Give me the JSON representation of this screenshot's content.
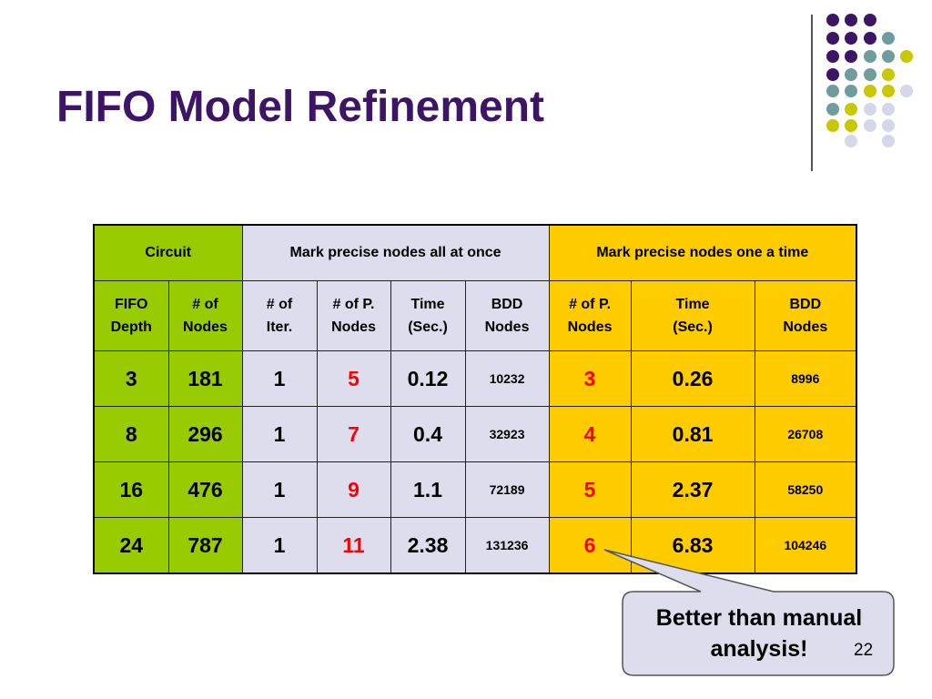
{
  "slide": {
    "title": "FIFO Model Refinement",
    "page_number": "22",
    "accent_colors": {
      "title": "#3d1565",
      "circuit_group": "#99cc00",
      "all_at_once_group": "#ddddee",
      "one_a_time_group": "#ffcc00",
      "highlight_text": "#ff0000"
    },
    "decor_dot_colors": [
      "#3d1565",
      "#6f9c9c",
      "#c8c800",
      "#d7d7ea"
    ]
  },
  "table": {
    "group_headers": {
      "circuit": "Circuit",
      "all_at_once": "Mark precise nodes all at once",
      "one_a_time": "Mark precise nodes one a time"
    },
    "columns": [
      {
        "line1": "FIFO",
        "line2": "Depth"
      },
      {
        "line1": "# of",
        "line2": "Nodes"
      },
      {
        "line1": "# of",
        "line2": "Iter."
      },
      {
        "line1": "# of P.",
        "line2": "Nodes"
      },
      {
        "line1": "Time",
        "line2": "(Sec.)"
      },
      {
        "line1": "BDD",
        "line2": "Nodes"
      },
      {
        "line1": "# of P.",
        "line2": "Nodes"
      },
      {
        "line1": "Time",
        "line2": "(Sec.)"
      },
      {
        "line1": "BDD",
        "line2": "Nodes"
      }
    ],
    "rows": [
      [
        "3",
        "181",
        "1",
        "5",
        "0.12",
        "10232",
        "3",
        "0.26",
        "8996"
      ],
      [
        "8",
        "296",
        "1",
        "7",
        "0.4",
        "32923",
        "4",
        "0.81",
        "26708"
      ],
      [
        "16",
        "476",
        "1",
        "9",
        "1.1",
        "72189",
        "5",
        "2.37",
        "58250"
      ],
      [
        "24",
        "787",
        "1",
        "11",
        "2.38",
        "131236",
        "6",
        "6.83",
        "104246"
      ]
    ]
  },
  "callout": {
    "line1": "Better than manual",
    "line2": "analysis!"
  }
}
